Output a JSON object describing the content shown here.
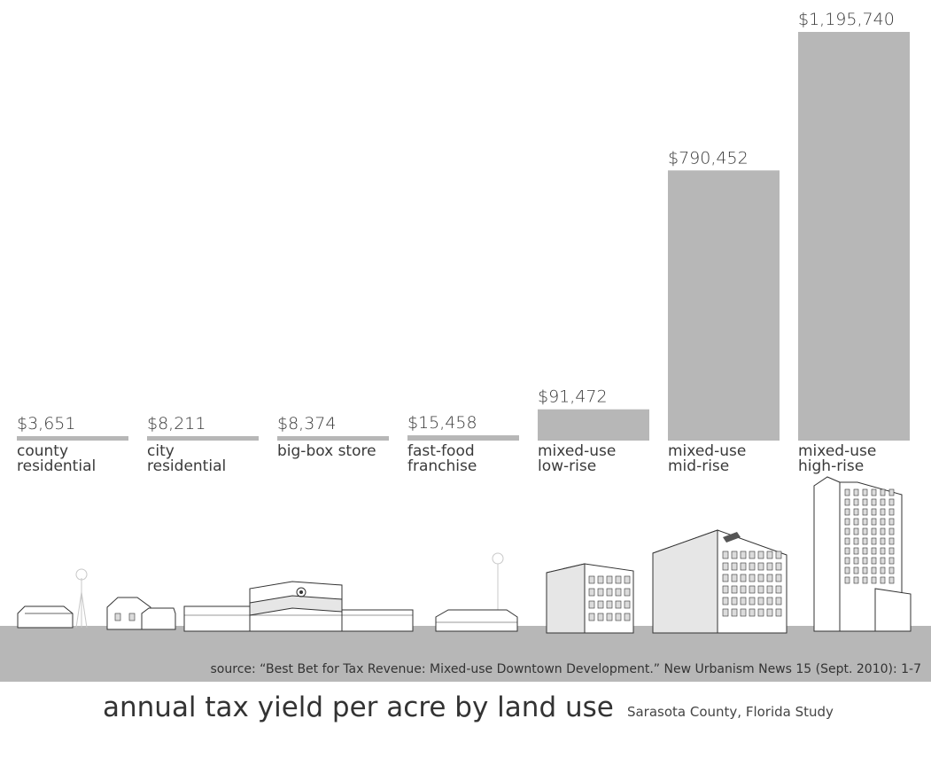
{
  "chart_data": {
    "type": "bar",
    "title": "annual tax yield per acre by land use",
    "subtitle": "Sarasota County, Florida Study",
    "source": "source: “Best Bet for Tax Revenue: Mixed-use Downtown Development.” New Urbanism News 15 (Sept. 2010): 1-7",
    "categories": [
      [
        "county",
        "residential"
      ],
      [
        "city",
        "residential"
      ],
      [
        "big-box store"
      ],
      [
        "fast-food",
        "franchise"
      ],
      [
        "mixed-use",
        "low-rise"
      ],
      [
        "mixed-use",
        "mid-rise"
      ],
      [
        "mixed-use",
        "high-rise"
      ]
    ],
    "values": [
      3651,
      8211,
      8374,
      15458,
      91472,
      790452,
      1195740
    ],
    "value_labels": [
      "$3,651",
      "$8,211",
      "$8,374",
      "$15,458",
      "$91,472",
      "$790,452",
      "$1,195,740"
    ],
    "ylim": [
      0,
      1195740
    ],
    "grid": false,
    "colors": {
      "bar": "#b7b7b7",
      "ground": "#b7b7b7",
      "text": "#3a3a3a"
    }
  },
  "illustrations": [
    "farmhouse-with-windmill-icon",
    "suburban-house-icon",
    "target-big-box-store-icon",
    "fast-food-restaurant-icon",
    "low-rise-building-icon",
    "mid-rise-building-icon",
    "high-rise-tower-icon"
  ]
}
